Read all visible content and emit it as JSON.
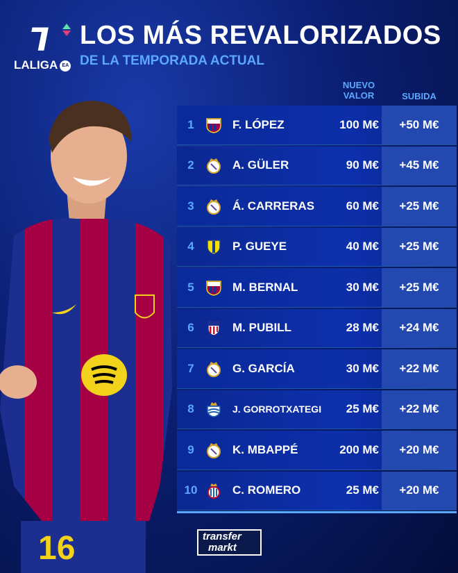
{
  "header": {
    "logo_text": "LALIGA",
    "logo_badge": "EA",
    "title": "LOS MÁS REVALORIZADOS",
    "subtitle": "DE LA TEMPORADA ACTUAL"
  },
  "columns": {
    "value": "NUEVO VALOR",
    "rise": "SUBIDA"
  },
  "rows": [
    {
      "rank": "1",
      "club": "barcelona",
      "name": "F. LÓPEZ",
      "value": "100 M€",
      "rise": "+50 M€"
    },
    {
      "rank": "2",
      "club": "real-madrid",
      "name": "A. GÜLER",
      "value": "90 M€",
      "rise": "+45 M€"
    },
    {
      "rank": "3",
      "club": "real-madrid",
      "name": "Á. CARRERAS",
      "value": "60 M€",
      "rise": "+25 M€"
    },
    {
      "rank": "4",
      "club": "villarreal",
      "name": "P. GUEYE",
      "value": "40 M€",
      "rise": "+25 M€"
    },
    {
      "rank": "5",
      "club": "barcelona",
      "name": "M. BERNAL",
      "value": "30 M€",
      "rise": "+25 M€"
    },
    {
      "rank": "6",
      "club": "atletico-madrid",
      "name": "M. PUBILL",
      "value": "28 M€",
      "rise": "+24 M€"
    },
    {
      "rank": "7",
      "club": "real-madrid",
      "name": "G. GARCÍA",
      "value": "30 M€",
      "rise": "+22 M€"
    },
    {
      "rank": "8",
      "club": "real-sociedad",
      "name": "J. GORROTXATEGI",
      "value": "25 M€",
      "rise": "+22 M€"
    },
    {
      "rank": "9",
      "club": "real-madrid",
      "name": "K. MBAPPÉ",
      "value": "200 M€",
      "rise": "+20 M€"
    },
    {
      "rank": "10",
      "club": "espanyol",
      "name": "C. ROMERO",
      "value": "25 M€",
      "rise": "+20 M€"
    }
  ],
  "player": {
    "shirt_number": "16"
  },
  "footer": {
    "brand_line1": "transfer",
    "brand_line2": "markt"
  },
  "colors": {
    "accent": "#5aa8ff",
    "row": "#0c2ea8",
    "rise_col": "#2348b0",
    "barca_red": "#a50044",
    "barca_blue": "#1c2e8f"
  }
}
